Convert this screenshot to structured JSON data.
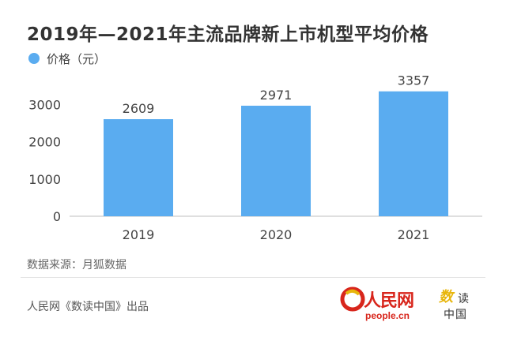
{
  "title": "2019年—2021年主流品牌新上市机型平均价格",
  "legend": {
    "label": "价格（元）"
  },
  "colors": {
    "bar": "#5aacf0",
    "axis": "#bfbfbf",
    "title": "#333333",
    "logo_red": "#d8261c",
    "logo_gold": "#e8b60c"
  },
  "chart_data": {
    "type": "bar",
    "categories": [
      "2019",
      "2020",
      "2021"
    ],
    "values": [
      2609,
      2971,
      3357
    ],
    "series": [
      {
        "name": "价格（元）",
        "values": [
          2609,
          2971,
          3357
        ]
      }
    ],
    "title": "2019年—2021年主流品牌新上市机型平均价格",
    "xlabel": "",
    "ylabel": "",
    "ylim": [
      0,
      3500
    ],
    "yticks": [
      0,
      1000,
      2000,
      3000
    ],
    "data_labels": [
      "2609",
      "2971",
      "3357"
    ],
    "grid": false,
    "legend_position": "top-left"
  },
  "source": "数据来源：月狐数据",
  "credit": "人民网《数读中国》出品",
  "logo_people": {
    "text": "人民网",
    "url_text": "people.cn"
  },
  "logo_shudu": {
    "char1": "数",
    "char2": "读",
    "line2": "中国"
  }
}
